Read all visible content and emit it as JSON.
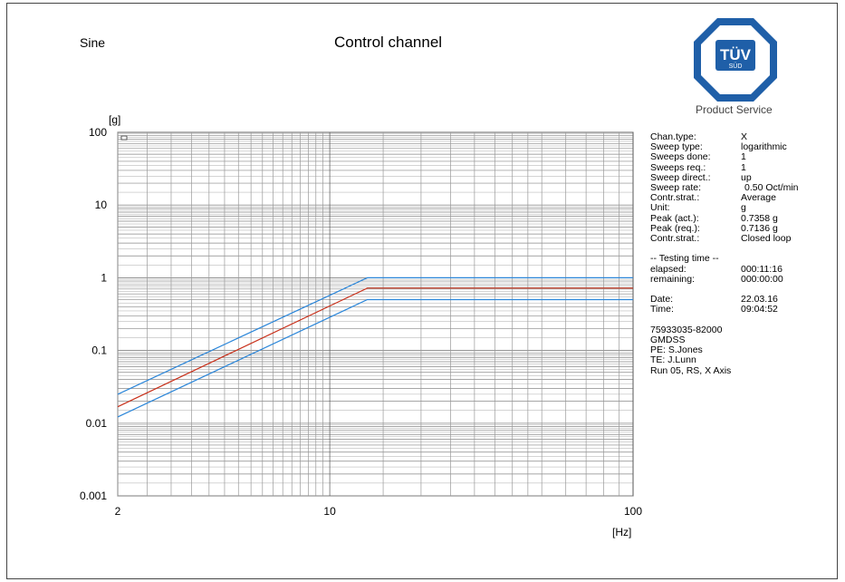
{
  "header": {
    "mode": "Sine",
    "title": "Control channel",
    "logo_text": "TÜV",
    "logo_subtext": "SÜD",
    "logo_caption": "Product Service"
  },
  "chart_data": {
    "type": "line",
    "title": "Control channel",
    "xlabel": "[Hz]",
    "ylabel": "[g]",
    "xscale": "log",
    "yscale": "log",
    "xlim": [
      2,
      100
    ],
    "ylim": [
      0.001,
      100
    ],
    "grid": true,
    "x_ticks": [
      "2",
      "10",
      "100"
    ],
    "y_ticks": [
      "100",
      "10",
      "1",
      "0.1",
      "0.01",
      "0.001"
    ],
    "series": [
      {
        "color": "#2b86d9",
        "x": [
          2,
          13.3,
          100
        ],
        "y": [
          0.025,
          1.0,
          1.0
        ]
      },
      {
        "color": "#c8301a",
        "x": [
          2,
          13.3,
          100
        ],
        "y": [
          0.0168,
          0.72,
          0.72
        ]
      },
      {
        "color": "#2b86d9",
        "x": [
          2,
          13.3,
          100
        ],
        "y": [
          0.0122,
          0.5,
          0.5
        ]
      }
    ]
  },
  "info": {
    "chan_type": {
      "label": "Chan.type:",
      "value": "X"
    },
    "sweep_type": {
      "label": "Sweep type:",
      "value": "logarithmic"
    },
    "sweeps_done": {
      "label": "Sweeps done:",
      "value": "1"
    },
    "sweeps_req": {
      "label": "Sweeps req.:",
      "value": "1"
    },
    "sweep_direct": {
      "label": "Sweep direct.:",
      "value": "up"
    },
    "sweep_rate": {
      "label": "Sweep rate:",
      "value": "0.50 Oct/min"
    },
    "contr_strat": {
      "label": "Contr.strat.:",
      "value": "Average"
    },
    "unit": {
      "label": "Unit:",
      "value": "g"
    },
    "peak_act": {
      "label": "Peak (act.):",
      "value": "0.7358 g"
    },
    "peak_req": {
      "label": "Peak (req.):",
      "value": "0.7136 g"
    },
    "contr_strat2": {
      "label": "Contr.strat.:",
      "value": "Closed loop"
    },
    "testing_time_header": "-- Testing time --",
    "elapsed": {
      "label": "elapsed:",
      "value": "000:11:16"
    },
    "remaining": {
      "label": "remaining:",
      "value": "000:00:00"
    },
    "date": {
      "label": "Date:",
      "value": "22.03.16"
    },
    "time": {
      "label": "Time:",
      "value": "09:04:52"
    },
    "notes": [
      "75933035-82000",
      "GMDSS",
      "PE: S.Jones",
      "TE: J.Lunn",
      "Run 05, RS, X Axis"
    ]
  }
}
